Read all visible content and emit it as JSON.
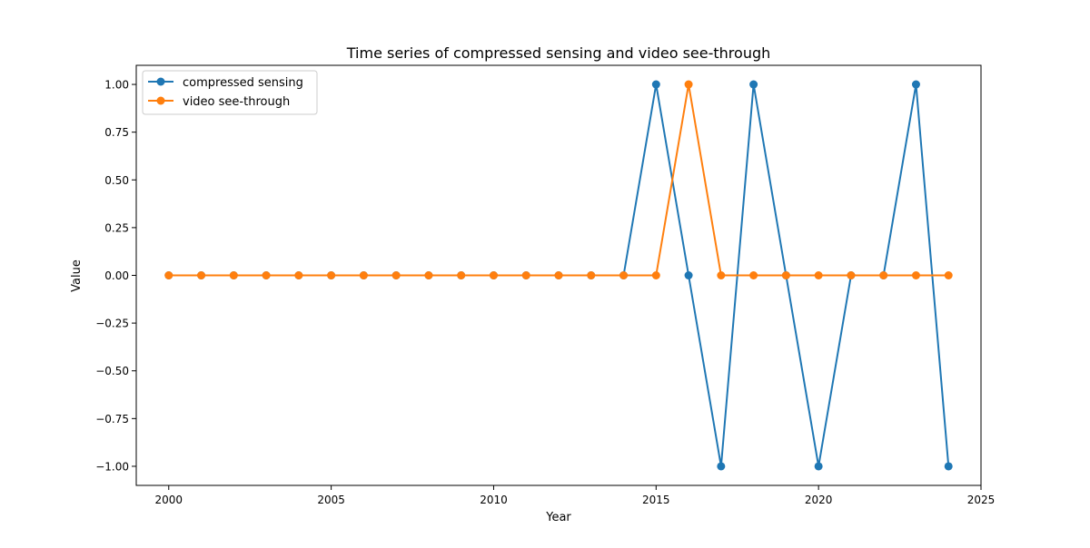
{
  "chart_data": {
    "type": "line",
    "title": "Time series of compressed sensing and video see-through",
    "xlabel": "Year",
    "ylabel": "Value",
    "xlim": [
      1999.0,
      2025.0
    ],
    "ylim": [
      -1.1,
      1.1
    ],
    "xticks": [
      2000,
      2005,
      2010,
      2015,
      2020,
      2025
    ],
    "xtick_labels": [
      "2000",
      "2005",
      "2010",
      "2015",
      "2020",
      "2025"
    ],
    "yticks": [
      1.0,
      0.75,
      0.5,
      0.25,
      0.0,
      -0.25,
      -0.5,
      -0.75,
      -1.0
    ],
    "ytick_labels": [
      "1.00",
      "0.75",
      "0.50",
      "0.25",
      "0.00",
      "−0.25",
      "−0.50",
      "−0.75",
      "−1.00"
    ],
    "grid": false,
    "legend_position": "top-left",
    "x": [
      2000,
      2001,
      2002,
      2003,
      2004,
      2005,
      2006,
      2007,
      2008,
      2009,
      2010,
      2011,
      2012,
      2013,
      2014,
      2015,
      2016,
      2017,
      2018,
      2019,
      2020,
      2021,
      2022,
      2023,
      2024
    ],
    "series": [
      {
        "name": "compressed sensing",
        "color": "#1f77b4",
        "values": [
          0,
          0,
          0,
          0,
          0,
          0,
          0,
          0,
          0,
          0,
          0,
          0,
          0,
          0,
          0,
          1,
          0,
          -1,
          1,
          0,
          -1,
          0,
          0,
          1,
          -1
        ]
      },
      {
        "name": "video see-through",
        "color": "#ff7f0e",
        "values": [
          0,
          0,
          0,
          0,
          0,
          0,
          0,
          0,
          0,
          0,
          0,
          0,
          0,
          0,
          0,
          0,
          1,
          0,
          0,
          0,
          0,
          0,
          0,
          0,
          0
        ]
      }
    ]
  }
}
